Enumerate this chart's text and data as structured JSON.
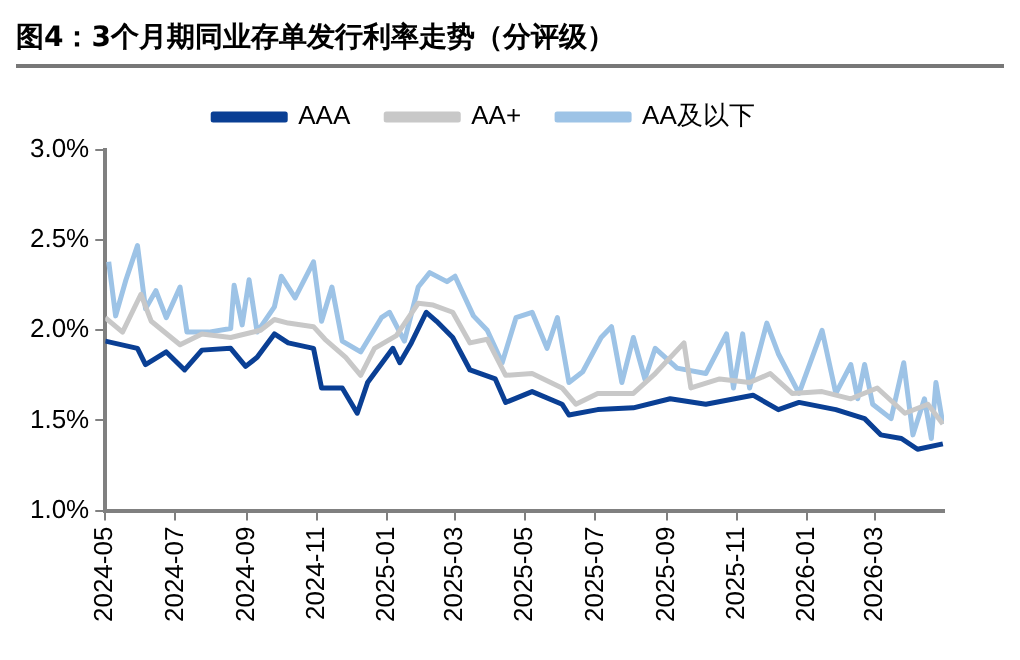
{
  "chart_data": {
    "type": "line",
    "title": "图4：3个月期同业存单发行利率走势（分评级）",
    "xlim": [
      "2024-05-01",
      "2026-04-30"
    ],
    "xticks": [
      {
        "value": "2024-05",
        "label": "2024-05"
      },
      {
        "value": "2024-07",
        "label": "2024-07"
      },
      {
        "value": "2024-09",
        "label": "2024-09"
      },
      {
        "value": "2024-11",
        "label": "2024-11"
      },
      {
        "value": "2025-01",
        "label": "2025-01"
      },
      {
        "value": "2025-03",
        "label": "2025-03"
      },
      {
        "value": "2025-05",
        "label": "2025-05"
      },
      {
        "value": "2025-07",
        "label": "2025-07"
      },
      {
        "value": "2025-09",
        "label": "2025-09"
      },
      {
        "value": "2025-11",
        "label": "2025-11"
      },
      {
        "value": "2026-01",
        "label": "2026-01"
      },
      {
        "value": "2026-03",
        "label": "2026-03"
      }
    ],
    "ylim": [
      1,
      3
    ],
    "yticks": [
      {
        "value": 1,
        "label": "1.0%"
      },
      {
        "value": 1.5,
        "label": "1.5%"
      },
      {
        "value": 2,
        "label": "2.0%"
      },
      {
        "value": 2.5,
        "label": "2.5%"
      },
      {
        "value": 3,
        "label": "3.0%"
      }
    ],
    "grid": false,
    "legend": "top",
    "marker": "none",
    "line_style": "solid",
    "series": [
      {
        "name": "AAA",
        "color": "#0a3f94",
        "x": [
          "2024-05-01",
          "2024-05-29",
          "2024-06-05",
          "2024-06-23",
          "2024-07-09",
          "2024-07-24",
          "2024-08-18",
          "2024-08-31",
          "2024-09-10",
          "2024-09-25",
          "2024-10-07",
          "2024-10-29",
          "2024-11-05",
          "2024-11-23",
          "2024-12-06",
          "2024-12-15",
          "2025-01-06",
          "2025-01-12",
          "2025-01-22",
          "2025-02-04",
          "2025-02-13",
          "2025-02-27",
          "2025-03-14",
          "2025-04-05",
          "2025-04-14",
          "2025-05-07",
          "2025-06-02",
          "2025-06-08",
          "2025-07-03",
          "2025-08-03",
          "2025-09-04",
          "2025-10-05",
          "2025-11-15",
          "2025-12-07",
          "2025-12-25",
          "2026-01-26",
          "2026-02-20",
          "2026-03-06",
          "2026-03-24",
          "2026-04-07",
          "2026-04-29"
        ],
        "values": [
          1.94,
          1.9,
          1.81,
          1.88,
          1.78,
          1.89,
          1.9,
          1.8,
          1.85,
          1.98,
          1.93,
          1.9,
          1.68,
          1.68,
          1.54,
          1.71,
          1.9,
          1.82,
          1.93,
          2.1,
          2.05,
          1.96,
          1.78,
          1.73,
          1.6,
          1.66,
          1.59,
          1.53,
          1.56,
          1.57,
          1.62,
          1.59,
          1.64,
          1.56,
          1.6,
          1.56,
          1.51,
          1.42,
          1.4,
          1.34,
          1.37
        ]
      },
      {
        "name": "AA+",
        "color": "#c8c8c8",
        "x": [
          "2024-05-01",
          "2024-05-16",
          "2024-06-01",
          "2024-06-10",
          "2024-07-05",
          "2024-07-24",
          "2024-08-18",
          "2024-09-13",
          "2024-09-25",
          "2024-10-07",
          "2024-10-29",
          "2024-11-08",
          "2024-11-26",
          "2024-12-09",
          "2024-12-21",
          "2025-01-09",
          "2025-01-28",
          "2025-02-10",
          "2025-02-27",
          "2025-03-14",
          "2025-03-29",
          "2025-04-14",
          "2025-05-07",
          "2025-06-02",
          "2025-06-14",
          "2025-07-03",
          "2025-08-03",
          "2025-08-22",
          "2025-09-16",
          "2025-09-22",
          "2025-10-17",
          "2025-11-12",
          "2025-11-30",
          "2025-12-19",
          "2026-01-14",
          "2026-02-08",
          "2026-03-03",
          "2026-03-27",
          "2026-04-16",
          "2026-04-29"
        ],
        "values": [
          2.07,
          1.99,
          2.2,
          2.05,
          1.92,
          1.98,
          1.96,
          2.0,
          2.06,
          2.04,
          2.02,
          1.95,
          1.85,
          1.75,
          1.9,
          1.97,
          2.15,
          2.14,
          2.1,
          1.93,
          1.95,
          1.75,
          1.76,
          1.68,
          1.59,
          1.65,
          1.65,
          1.76,
          1.93,
          1.68,
          1.73,
          1.71,
          1.76,
          1.65,
          1.66,
          1.62,
          1.68,
          1.54,
          1.59,
          1.48
        ]
      },
      {
        "name": "AA及以下",
        "color": "#9dc3e6",
        "x": [
          "2024-05-04",
          "2024-05-10",
          "2024-05-19",
          "2024-05-29",
          "2024-06-05",
          "2024-06-14",
          "2024-06-23",
          "2024-07-05",
          "2024-07-11",
          "2024-07-30",
          "2024-08-18",
          "2024-08-21",
          "2024-08-28",
          "2024-09-03",
          "2024-09-10",
          "2024-09-25",
          "2024-10-01",
          "2024-10-13",
          "2024-10-29",
          "2024-11-05",
          "2024-11-14",
          "2024-11-23",
          "2024-12-09",
          "2024-12-27",
          "2025-01-03",
          "2025-01-16",
          "2025-01-28",
          "2025-02-07",
          "2025-02-22",
          "2025-03-01",
          "2025-03-17",
          "2025-03-29",
          "2025-04-11",
          "2025-04-23",
          "2025-05-07",
          "2025-05-20",
          "2025-05-29",
          "2025-06-08",
          "2025-06-20",
          "2025-07-06",
          "2025-07-15",
          "2025-07-24",
          "2025-08-03",
          "2025-08-13",
          "2025-08-22",
          "2025-09-10",
          "2025-10-05",
          "2025-10-23",
          "2025-10-29",
          "2025-11-06",
          "2025-11-12",
          "2025-11-27",
          "2025-12-07",
          "2025-12-25",
          "2026-01-14",
          "2026-01-26",
          "2026-02-08",
          "2026-02-14",
          "2026-02-20",
          "2026-02-27",
          "2026-03-15",
          "2026-03-26",
          "2026-04-03",
          "2026-04-13",
          "2026-04-19",
          "2026-04-23",
          "2026-04-29"
        ],
        "values": [
          2.38,
          2.08,
          2.28,
          2.47,
          2.12,
          2.22,
          2.07,
          2.24,
          1.99,
          1.99,
          2.01,
          2.25,
          2.03,
          2.28,
          1.99,
          2.13,
          2.3,
          2.18,
          2.38,
          2.05,
          2.24,
          1.94,
          1.88,
          2.07,
          2.1,
          1.94,
          2.24,
          2.32,
          2.27,
          2.3,
          2.08,
          2.0,
          1.82,
          2.07,
          2.1,
          1.9,
          2.07,
          1.71,
          1.77,
          1.96,
          2.02,
          1.71,
          1.96,
          1.73,
          1.9,
          1.79,
          1.76,
          1.98,
          1.68,
          1.98,
          1.68,
          2.04,
          1.87,
          1.65,
          2.0,
          1.65,
          1.81,
          1.62,
          1.81,
          1.59,
          1.51,
          1.82,
          1.42,
          1.62,
          1.4,
          1.71,
          1.48
        ]
      }
    ]
  }
}
